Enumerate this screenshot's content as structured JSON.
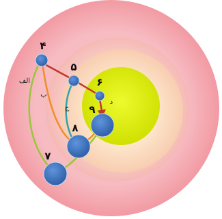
{
  "diagram": {
    "node_labels": {
      "n4": "۴",
      "n5": "۵",
      "n6": "۶",
      "n7": "۷",
      "n8": "۸",
      "n9": "۹"
    },
    "path_labels": {
      "alef": "الف",
      "be": "ب",
      "jim": "ج",
      "dal": "د"
    },
    "colors": {
      "ring_outer": "#f6b3b9",
      "ring_middle": "#f8cfc7",
      "ring_inner": "#fbe3c4",
      "core": "#dff000",
      "node": "#3f78c4",
      "path_red": "#c0392b",
      "path_orange": "#f28c28",
      "path_teal": "#33a1b0",
      "path_green": "#9bc53d"
    }
  }
}
